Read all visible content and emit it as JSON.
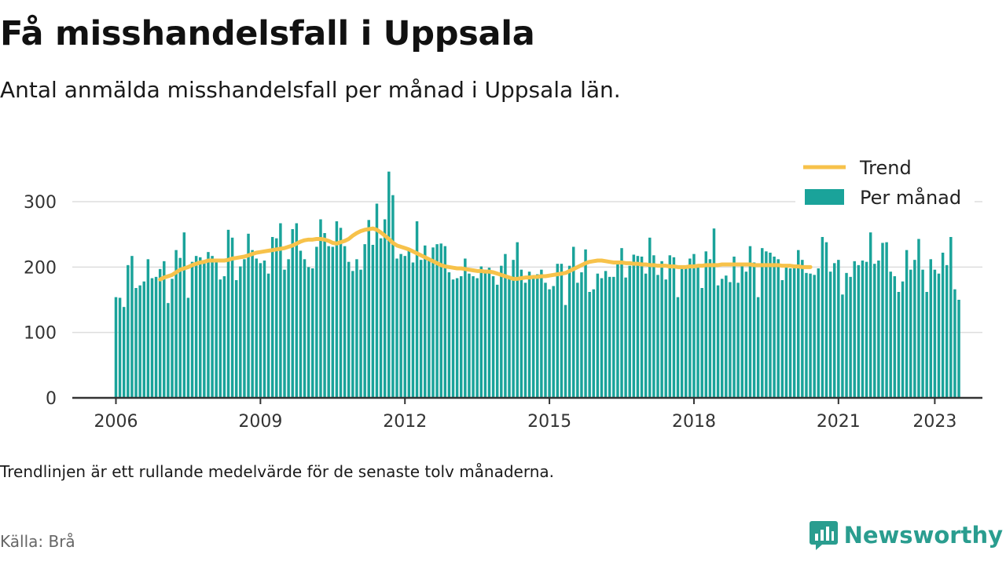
{
  "header": {
    "title": "Få misshandelsfall i Uppsala",
    "subtitle": "Antal anmälda misshandelsfall per månad i Uppsala län."
  },
  "footer": {
    "note": "Trendlinjen är ett rullande medelvärde för de senaste tolv månaderna.",
    "source": "Källa: Brå",
    "brand": "Newsworthy"
  },
  "colors": {
    "bars": "#1aa39a",
    "trend": "#f7c24a",
    "grid": "#dddddd",
    "axis": "#333333",
    "brand": "#2a9d8f"
  },
  "icons": {
    "logo": "newsworthy-logo-icon"
  },
  "chart_data": {
    "type": "bar",
    "x_start": "2006-01",
    "x_end": "2023-02",
    "x_ticks": [
      "2006",
      "2009",
      "2012",
      "2015",
      "2018",
      "2021",
      "2023"
    ],
    "y_ticks": [
      0,
      100,
      200,
      300
    ],
    "ylim": [
      0,
      355
    ],
    "grid": true,
    "legend_position": "top-right",
    "series": [
      {
        "name": "Per månad",
        "kind": "bar",
        "values": [
          154,
          153,
          139,
          203,
          217,
          168,
          172,
          178,
          212,
          183,
          185,
          197,
          209,
          145,
          182,
          226,
          214,
          253,
          153,
          208,
          217,
          215,
          210,
          223,
          217,
          212,
          181,
          186,
          257,
          245,
          180,
          201,
          212,
          251,
          226,
          213,
          206,
          210,
          190,
          246,
          244,
          267,
          196,
          212,
          258,
          267,
          225,
          212,
          200,
          198,
          231,
          273,
          252,
          232,
          231,
          270,
          260,
          232,
          208,
          194,
          212,
          196,
          235,
          272,
          234,
          297,
          244,
          273,
          346,
          310,
          213,
          220,
          217,
          229,
          207,
          270,
          211,
          233,
          211,
          230,
          235,
          236,
          232,
          192,
          181,
          183,
          186,
          213,
          190,
          186,
          183,
          201,
          196,
          199,
          186,
          173,
          202,
          220,
          185,
          211,
          238,
          196,
          176,
          193,
          187,
          189,
          196,
          176,
          166,
          171,
          205,
          205,
          142,
          202,
          231,
          176,
          192,
          227,
          162,
          166,
          190,
          183,
          194,
          185,
          185,
          210,
          229,
          184,
          202,
          219,
          217,
          216,
          190,
          245,
          218,
          188,
          209,
          181,
          218,
          215,
          154,
          199,
          198,
          213,
          220,
          204,
          168,
          224,
          212,
          259,
          172,
          182,
          187,
          177,
          216,
          176,
          205,
          193,
          232,
          207,
          154,
          229,
          224,
          222,
          216,
          212,
          180,
          200,
          198,
          204,
          226,
          211,
          191,
          190,
          188,
          198,
          246,
          238,
          193,
          206,
          211,
          158,
          191,
          185,
          209,
          203,
          210,
          208,
          253,
          205,
          210,
          237,
          238,
          193,
          186,
          162,
          178,
          226,
          196,
          211,
          243,
          196,
          162,
          212,
          196,
          190,
          222,
          203,
          246,
          166,
          150
        ]
      },
      {
        "name": "Trend",
        "kind": "line",
        "start": "2006-12",
        "values": [
          181,
          184,
          186,
          188,
          192,
          196,
          198,
          200,
          203,
          205,
          207,
          208,
          210,
          210,
          210,
          210,
          210,
          211,
          213,
          214,
          215,
          216,
          218,
          220,
          222,
          223,
          224,
          225,
          226,
          227,
          228,
          229,
          231,
          233,
          236,
          239,
          241,
          242,
          242,
          243,
          243,
          242,
          240,
          237,
          236,
          238,
          240,
          243,
          248,
          252,
          255,
          257,
          258,
          259,
          257,
          253,
          248,
          243,
          237,
          233,
          231,
          229,
          227,
          224,
          221,
          218,
          215,
          212,
          209,
          206,
          203,
          201,
          200,
          199,
          198,
          198,
          197,
          196,
          195,
          194,
          194,
          193,
          193,
          192,
          190,
          188,
          186,
          184,
          182,
          182,
          183,
          184,
          184,
          185,
          185,
          186,
          186,
          187,
          188,
          189,
          190,
          191,
          194,
          197,
          200,
          203,
          206,
          208,
          209,
          210,
          210,
          209,
          208,
          207,
          207,
          207,
          206,
          206,
          205,
          205,
          204,
          204,
          203,
          203,
          202,
          202,
          202,
          201,
          201,
          200,
          200,
          200,
          201,
          201,
          202,
          202,
          203,
          203,
          203,
          203,
          204,
          204,
          204,
          204,
          204,
          204,
          204,
          204,
          203,
          203,
          203,
          203,
          203,
          203,
          203,
          202,
          202,
          202,
          201,
          201,
          200,
          200,
          200
        ]
      }
    ]
  }
}
